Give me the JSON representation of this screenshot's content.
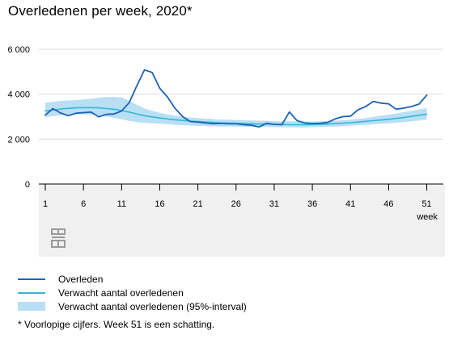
{
  "title": "Overledenen per week, 2020*",
  "footnote": "* Voorlopige cijfers. Week 51 is een schatting.",
  "legend": [
    {
      "key": "observed",
      "label": "Overleden",
      "color": "#1d63b5",
      "kind": "line"
    },
    {
      "key": "expected",
      "label": "Verwacht aantal overledenen",
      "color": "#33b7d6",
      "kind": "line"
    },
    {
      "key": "band",
      "label": "Verwacht aantal overledenen (95%-interval)",
      "color": "#b9dff5",
      "kind": "band"
    }
  ],
  "logo_icon": "cbs-logo-icon",
  "chart_data": {
    "type": "line",
    "title": "Overledenen per week, 2020*",
    "xlabel": "week",
    "ylabel": "",
    "xlim": [
      1,
      52
    ],
    "ylim": [
      0,
      6000
    ],
    "x_ticks": [
      1,
      6,
      11,
      16,
      21,
      26,
      31,
      36,
      41,
      46,
      51
    ],
    "x_tick_labels": [
      "1",
      "6",
      "11",
      "16",
      "21",
      "26",
      "31",
      "36",
      "41",
      "46",
      "51"
    ],
    "y_ticks": [
      0,
      2000,
      4000,
      6000
    ],
    "y_tick_labels": [
      "0",
      "2 000",
      "4 000",
      "6 000"
    ],
    "grid": "horizontal",
    "x": [
      1,
      2,
      3,
      4,
      5,
      6,
      7,
      8,
      9,
      10,
      11,
      12,
      13,
      14,
      15,
      16,
      17,
      18,
      19,
      20,
      21,
      22,
      23,
      24,
      25,
      26,
      27,
      28,
      29,
      30,
      31,
      32,
      33,
      34,
      35,
      36,
      37,
      38,
      39,
      40,
      41,
      42,
      43,
      44,
      45,
      46,
      47,
      48,
      49,
      50,
      51
    ],
    "series": [
      {
        "name": "Overleden",
        "color": "#1d63b5",
        "values": [
          3070,
          3360,
          3160,
          3040,
          3150,
          3180,
          3200,
          2990,
          3100,
          3120,
          3250,
          3620,
          4380,
          5080,
          4970,
          4260,
          3880,
          3370,
          3000,
          2780,
          2760,
          2720,
          2680,
          2700,
          2680,
          2680,
          2640,
          2620,
          2540,
          2700,
          2660,
          2640,
          3210,
          2820,
          2720,
          2690,
          2700,
          2740,
          2900,
          3000,
          3020,
          3310,
          3450,
          3680,
          3600,
          3570,
          3330,
          3380,
          3450,
          3560,
          3960
        ]
      },
      {
        "name": "Verwacht aantal overledenen",
        "color": "#33b7d6",
        "values": [
          3250,
          3290,
          3340,
          3370,
          3390,
          3400,
          3400,
          3390,
          3360,
          3330,
          3270,
          3200,
          3120,
          3040,
          2990,
          2940,
          2900,
          2860,
          2830,
          2800,
          2780,
          2760,
          2740,
          2720,
          2710,
          2700,
          2690,
          2680,
          2670,
          2670,
          2660,
          2650,
          2640,
          2640,
          2640,
          2650,
          2660,
          2670,
          2690,
          2710,
          2730,
          2760,
          2790,
          2820,
          2850,
          2880,
          2920,
          2960,
          3010,
          3060,
          3110
        ]
      }
    ],
    "band": {
      "name": "Verwacht aantal overledenen (95%-interval)",
      "color": "#b9dff5",
      "lower": [
        2980,
        3020,
        3060,
        3090,
        3100,
        3100,
        3080,
        3050,
        3000,
        2950,
        2880,
        2810,
        2760,
        2720,
        2700,
        2680,
        2660,
        2640,
        2620,
        2600,
        2590,
        2580,
        2570,
        2560,
        2560,
        2550,
        2550,
        2540,
        2540,
        2540,
        2530,
        2530,
        2520,
        2520,
        2520,
        2530,
        2540,
        2550,
        2560,
        2580,
        2600,
        2620,
        2640,
        2660,
        2680,
        2700,
        2730,
        2760,
        2790,
        2830,
        2870
      ],
      "upper": [
        3620,
        3660,
        3700,
        3720,
        3740,
        3760,
        3800,
        3840,
        3870,
        3880,
        3850,
        3700,
        3530,
        3370,
        3260,
        3170,
        3100,
        3040,
        2990,
        2960,
        2930,
        2910,
        2890,
        2870,
        2860,
        2850,
        2840,
        2830,
        2820,
        2810,
        2800,
        2790,
        2790,
        2780,
        2780,
        2780,
        2790,
        2800,
        2820,
        2840,
        2870,
        2900,
        2940,
        2990,
        3040,
        3090,
        3140,
        3200,
        3260,
        3320,
        3380
      ]
    }
  }
}
